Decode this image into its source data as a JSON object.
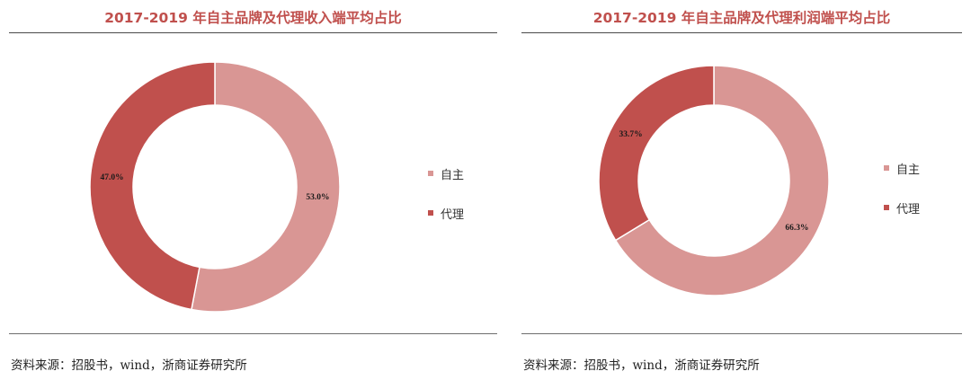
{
  "source_note": "资料来源：招股书，wind，浙商证券研究所",
  "chart_data": [
    {
      "type": "pie",
      "title": "2017-2019 年自主品牌及代理收入端平均占比",
      "categories": [
        "自主",
        "代理"
      ],
      "values": [
        53.0,
        47.0
      ],
      "data_labels": [
        "53.0%",
        "47.0%"
      ],
      "units": "%",
      "legend": "right",
      "donut": true,
      "colors": [
        "#d99694",
        "#c0504d"
      ]
    },
    {
      "type": "pie",
      "title": "2017-2019 年自主品牌及代理利润端平均占比",
      "categories": [
        "自主",
        "代理"
      ],
      "values": [
        66.3,
        33.7
      ],
      "data_labels": [
        "66.3%",
        "33.7%"
      ],
      "units": "%",
      "legend": "right",
      "donut": true,
      "colors": [
        "#d99694",
        "#c0504d"
      ]
    }
  ]
}
